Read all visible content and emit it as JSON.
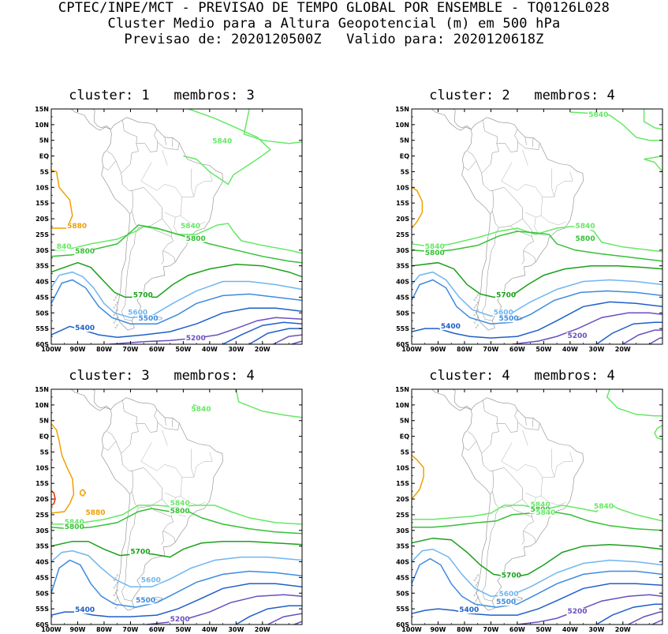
{
  "header": {
    "line1": "CPTEC/INPE/MCT - PREVISAO DE TEMPO GLOBAL POR ENSEMBLE - TQ0126L028",
    "line2": "Cluster Medio para a Altura Geopotencial (m) em 500 hPa",
    "line3": "Previsao de: 2020120500Z   Valido para: 2020120618Z"
  },
  "axes": {
    "lat_labels": [
      "15N",
      "10N",
      "5N",
      "EQ",
      "5S",
      "10S",
      "15S",
      "20S",
      "25S",
      "30S",
      "35S",
      "40S",
      "45S",
      "50S",
      "55S",
      "60S"
    ],
    "lon_labels": [
      "100W",
      "90W",
      "80W",
      "70W",
      "60W",
      "50W",
      "40W",
      "30W",
      "20W"
    ]
  },
  "colors": {
    "c5200": "#6a4fc0",
    "c5400": "#1f5fc8",
    "c5500": "#3d8be0",
    "c5600": "#6fb6f0",
    "c5700": "#1aa01a",
    "c5800": "#36c036",
    "c5840": "#66e866",
    "c5880": "#f0a000",
    "c5920": "#e03000",
    "coast": "#888888"
  },
  "panels": [
    {
      "title": "cluster: 1   membros: 3",
      "labels": [
        {
          "text": "5840",
          "c": "c5840"
        },
        {
          "text": "5880",
          "c": "c5880"
        },
        {
          "text": "5840",
          "c": "c5840"
        },
        {
          "text": "5800",
          "c": "c5800"
        },
        {
          "text": "5800",
          "c": "c5800"
        },
        {
          "text": "840",
          "c": "c5840"
        },
        {
          "text": "5700",
          "c": "c5700"
        },
        {
          "text": "5600",
          "c": "c5600"
        },
        {
          "text": "5500",
          "c": "c5500"
        },
        {
          "text": "5400",
          "c": "c5400"
        },
        {
          "text": "5200",
          "c": "c5200"
        }
      ]
    },
    {
      "title": "cluster: 2   membros: 4",
      "labels": [
        {
          "text": "5840",
          "c": "c5840"
        },
        {
          "text": "5840",
          "c": "c5840"
        },
        {
          "text": "5840",
          "c": "c5840"
        },
        {
          "text": "5800",
          "c": "c5800"
        },
        {
          "text": "5800",
          "c": "c5800"
        },
        {
          "text": "5700",
          "c": "c5700"
        },
        {
          "text": "5600",
          "c": "c5600"
        },
        {
          "text": "5500",
          "c": "c5500"
        },
        {
          "text": "5400",
          "c": "c5400"
        },
        {
          "text": "5200",
          "c": "c5200"
        }
      ]
    },
    {
      "title": "cluster: 3   membros: 4",
      "labels": [
        {
          "text": "5840",
          "c": "c5840"
        },
        {
          "text": "5880",
          "c": "c5880"
        },
        {
          "text": "5840",
          "c": "c5840"
        },
        {
          "text": "5840",
          "c": "c5840"
        },
        {
          "text": "5800",
          "c": "c5800"
        },
        {
          "text": "5800",
          "c": "c5800"
        },
        {
          "text": "5700",
          "c": "c5700"
        },
        {
          "text": "5600",
          "c": "c5600"
        },
        {
          "text": "5500",
          "c": "c5500"
        },
        {
          "text": "5400",
          "c": "c5400"
        },
        {
          "text": "5200",
          "c": "c5200"
        }
      ]
    },
    {
      "title": "cluster: 4   membros: 4",
      "labels": [
        {
          "text": "5840",
          "c": "c5840"
        },
        {
          "text": "5840",
          "c": "c5840"
        },
        {
          "text": "5800",
          "c": "c5800"
        },
        {
          "text": "5840",
          "c": "c5840"
        },
        {
          "text": "5700",
          "c": "c5700"
        },
        {
          "text": "5600",
          "c": "c5600"
        },
        {
          "text": "5500",
          "c": "c5500"
        },
        {
          "text": "5400",
          "c": "c5400"
        },
        {
          "text": "5200",
          "c": "c5200"
        }
      ]
    }
  ]
}
